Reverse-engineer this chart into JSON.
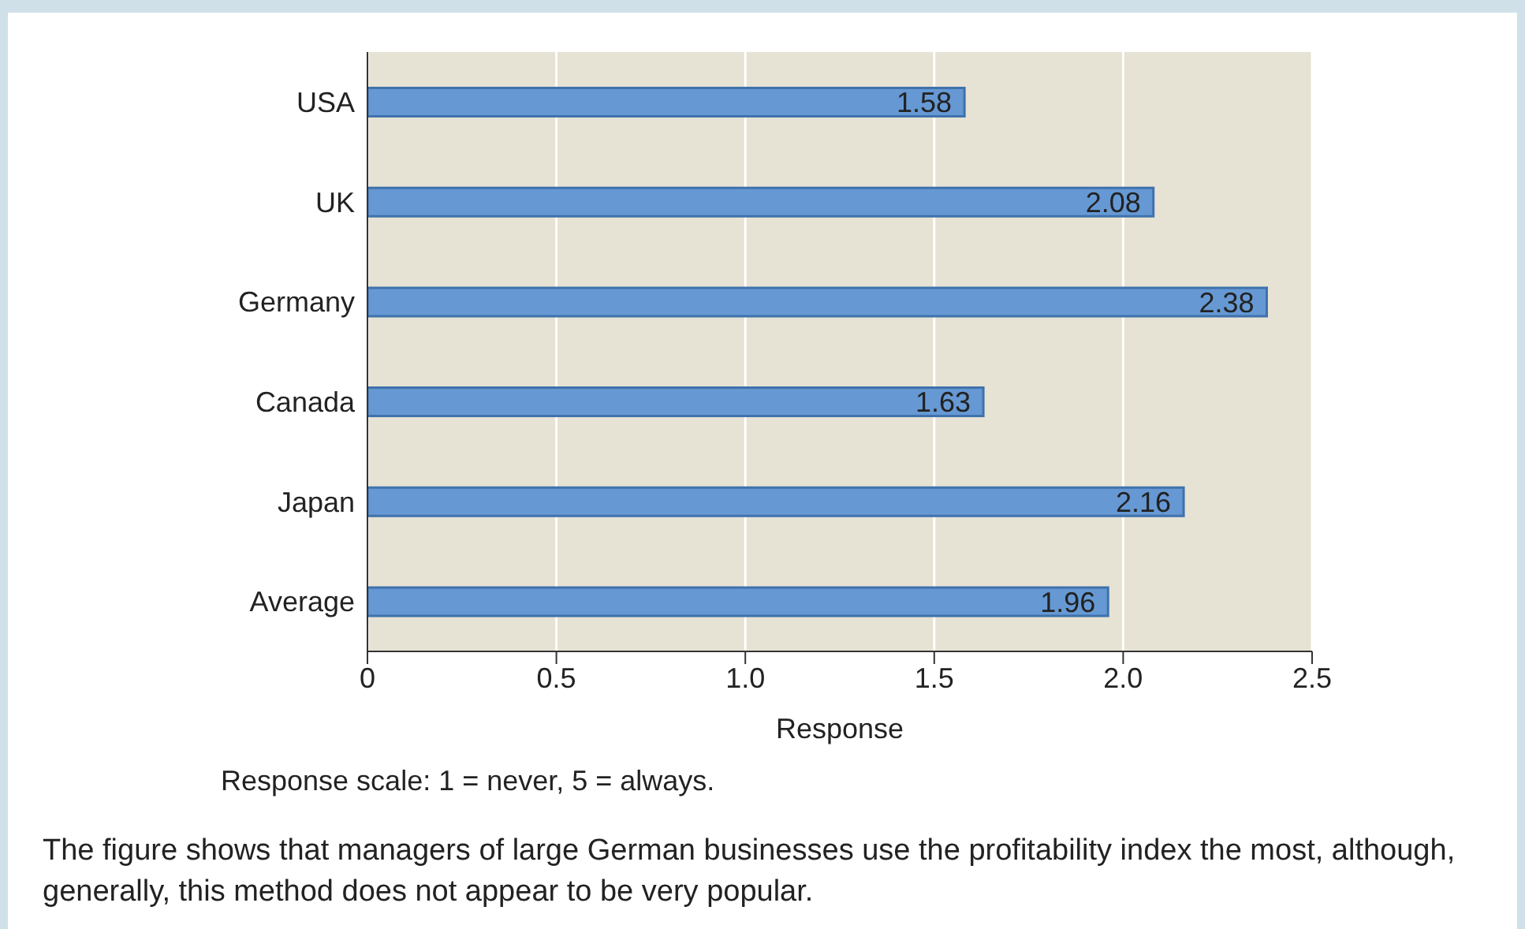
{
  "chart_data": {
    "type": "bar",
    "orientation": "horizontal",
    "xlabel": "Response",
    "categories": [
      "USA",
      "UK",
      "Germany",
      "Canada",
      "Japan",
      "Average"
    ],
    "values": [
      1.58,
      2.08,
      2.38,
      1.63,
      2.16,
      1.96
    ],
    "color": "#6699d4",
    "data_labels": true,
    "xlim": [
      0,
      2.5
    ],
    "xticks": [
      0,
      {
        "value": 0.5,
        "label": "0.5"
      },
      {
        "value": 1,
        "label": "1.0"
      },
      {
        "value": 1.5,
        "label": "1.5"
      },
      {
        "value": 2,
        "label": "2.0"
      },
      {
        "value": 2.5,
        "label": "2.5"
      }
    ],
    "grid": "x",
    "legend": false,
    "annotations": [
      "Response scale: 1 = never, 5 = always.",
      "The figure shows that managers of large German businesses use the profitability index the most, although, generally, this method does not appear to be very popular."
    ]
  }
}
